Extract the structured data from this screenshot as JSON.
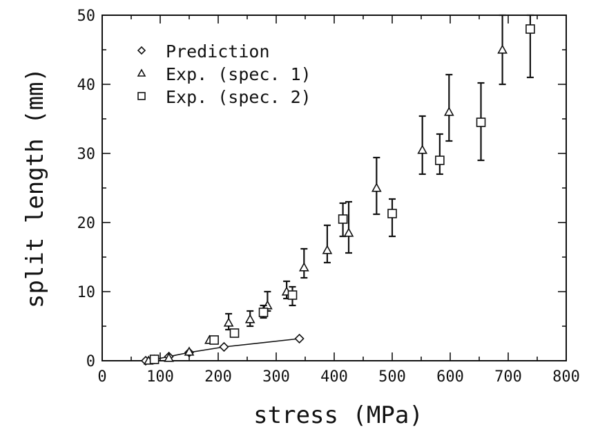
{
  "chart_data": {
    "type": "scatter",
    "xlabel": "stress (MPa)",
    "ylabel": "split length (mm)",
    "xlim": [
      0,
      800
    ],
    "ylim": [
      0,
      50
    ],
    "x_ticks": [
      "0",
      "100",
      "200",
      "300",
      "400",
      "500",
      "600",
      "700",
      "800"
    ],
    "y_ticks": [
      "0",
      "10",
      "20",
      "30",
      "40",
      "50"
    ],
    "grid": false,
    "legend_position": "top-left",
    "series": [
      {
        "name": "Prediction",
        "marker": "diamond",
        "connected": true,
        "points": [
          {
            "x": 75,
            "y": 0.0
          },
          {
            "x": 90,
            "y": 0.2
          },
          {
            "x": 115,
            "y": 0.6
          },
          {
            "x": 150,
            "y": 1.2
          },
          {
            "x": 210,
            "y": 2.0
          },
          {
            "x": 340,
            "y": 3.2
          }
        ]
      },
      {
        "name": "Exp. (spec. 1)",
        "marker": "triangle",
        "points": [
          {
            "x": 80,
            "y": 0.0
          },
          {
            "x": 115,
            "y": 0.4
          },
          {
            "x": 150,
            "y": 1.3
          },
          {
            "x": 185,
            "y": 3.0
          },
          {
            "x": 218,
            "y": 5.5,
            "err_low": 4.5,
            "err_high": 6.8
          },
          {
            "x": 255,
            "y": 6.0,
            "err_low": 5.0,
            "err_high": 7.2
          },
          {
            "x": 285,
            "y": 8.0,
            "err_low": 7.2,
            "err_high": 10.0
          },
          {
            "x": 318,
            "y": 10.0,
            "err_low": 9.0,
            "err_high": 11.5
          },
          {
            "x": 348,
            "y": 13.5,
            "err_low": 12.0,
            "err_high": 16.2
          },
          {
            "x": 388,
            "y": 16.0,
            "err_low": 14.2,
            "err_high": 19.6
          },
          {
            "x": 425,
            "y": 18.5,
            "err_low": 15.6,
            "err_high": 23.0
          },
          {
            "x": 473,
            "y": 25.0,
            "err_low": 21.2,
            "err_high": 29.4
          },
          {
            "x": 552,
            "y": 30.5,
            "err_low": 27.0,
            "err_high": 35.4
          },
          {
            "x": 598,
            "y": 36.0,
            "err_low": 31.8,
            "err_high": 41.4
          },
          {
            "x": 690,
            "y": 45.0,
            "err_low": 40.0,
            "err_high": 50.0
          }
        ]
      },
      {
        "name": "Exp. (spec. 2)",
        "marker": "square",
        "points": [
          {
            "x": 90,
            "y": 0.2
          },
          {
            "x": 193,
            "y": 3.0
          },
          {
            "x": 228,
            "y": 4.0
          },
          {
            "x": 278,
            "y": 7.0,
            "err_low": 6.2,
            "err_high": 8.0
          },
          {
            "x": 328,
            "y": 9.5,
            "err_low": 8.0,
            "err_high": 10.7
          },
          {
            "x": 415,
            "y": 20.5,
            "err_low": 18.0,
            "err_high": 22.8
          },
          {
            "x": 500,
            "y": 21.3,
            "err_low": 18.0,
            "err_high": 23.4
          },
          {
            "x": 582,
            "y": 29.0,
            "err_low": 27.0,
            "err_high": 32.8
          },
          {
            "x": 653,
            "y": 34.5,
            "err_low": 29.0,
            "err_high": 40.2
          },
          {
            "x": 738,
            "y": 48.0,
            "err_low": 41.0,
            "err_high": 50.0
          }
        ]
      }
    ]
  }
}
